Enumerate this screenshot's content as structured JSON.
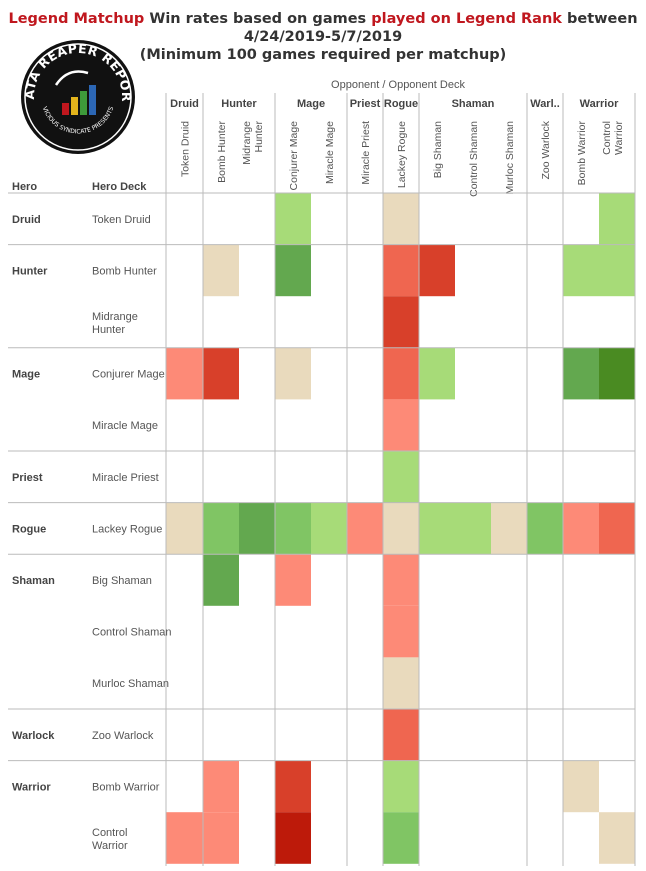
{
  "title": {
    "part1": "Legend Matchup",
    "part2": " Win rates based on games ",
    "part3": "played on Legend Rank",
    "part4": "  between",
    "line2": "4/24/2019-5/7/2019",
    "line3": "(Minimum 100 games required per matchup)"
  },
  "logo": {
    "text": "DATA REAPER REPORT",
    "subtext": "VICIOUS SYNDICATE PRESENTS"
  },
  "colors": {
    "dark_red": "#bd1a0a",
    "red": "#d8402a",
    "light_red": "#ef6650",
    "salmon": "#fd8a77",
    "neutral": "#e9dabd",
    "light_green": "#a7db78",
    "green": "#80c564",
    "mid_green": "#63a84f",
    "dark_green": "#4a8b22"
  },
  "chart_data": {
    "type": "heatmap",
    "opponent_axis_label": "Opponent  /  Opponent Deck",
    "row_header_hero": "Hero",
    "row_header_deck": "Hero Deck",
    "column_groups": [
      {
        "hero": "Druid",
        "decks": [
          "Token Druid"
        ]
      },
      {
        "hero": "Hunter",
        "decks": [
          "Bomb Hunter",
          "Midrange Hunter"
        ]
      },
      {
        "hero": "Mage",
        "decks": [
          "Conjurer Mage",
          "Miracle Mage"
        ]
      },
      {
        "hero": "Priest",
        "decks": [
          "Miracle Priest"
        ]
      },
      {
        "hero": "Rogue",
        "decks": [
          "Lackey Rogue"
        ]
      },
      {
        "hero": "Shaman",
        "decks": [
          "Big Shaman",
          "Control Shaman",
          "Murloc Shaman"
        ]
      },
      {
        "hero": "Warl..",
        "decks": [
          "Zoo Warlock"
        ]
      },
      {
        "hero": "Warrior",
        "decks": [
          "Bomb Warrior",
          "Control Warrior"
        ]
      }
    ],
    "row_groups": [
      {
        "hero": "Druid",
        "decks": [
          {
            "name": "Token Druid",
            "cells": [
              null,
              null,
              null,
              "light_green",
              null,
              null,
              "neutral",
              null,
              null,
              null,
              null,
              null,
              "light_green"
            ]
          }
        ]
      },
      {
        "hero": "Hunter",
        "decks": [
          {
            "name": "Bomb Hunter",
            "cells": [
              null,
              "neutral",
              null,
              "mid_green",
              null,
              null,
              "light_red",
              "red",
              null,
              null,
              null,
              "light_green",
              "light_green"
            ]
          },
          {
            "name": "Midrange Hunter",
            "cells": [
              null,
              null,
              null,
              null,
              null,
              null,
              "red",
              null,
              null,
              null,
              null,
              null,
              null
            ]
          }
        ]
      },
      {
        "hero": "Mage",
        "decks": [
          {
            "name": "Conjurer Mage",
            "cells": [
              "salmon",
              "red",
              null,
              "neutral",
              null,
              null,
              "light_red",
              "light_green",
              null,
              null,
              null,
              "mid_green",
              "dark_green"
            ]
          },
          {
            "name": "Miracle Mage",
            "cells": [
              null,
              null,
              null,
              null,
              null,
              null,
              "salmon",
              null,
              null,
              null,
              null,
              null,
              null
            ]
          }
        ]
      },
      {
        "hero": "Priest",
        "decks": [
          {
            "name": "Miracle Priest",
            "cells": [
              null,
              null,
              null,
              null,
              null,
              null,
              "light_green",
              null,
              null,
              null,
              null,
              null,
              null
            ]
          }
        ]
      },
      {
        "hero": "Rogue",
        "decks": [
          {
            "name": "Lackey Rogue",
            "cells": [
              "neutral",
              "green",
              "mid_green",
              "green",
              "light_green",
              "salmon",
              "neutral",
              "light_green",
              "light_green",
              "neutral",
              "green",
              "salmon",
              "light_red"
            ]
          }
        ]
      },
      {
        "hero": "Shaman",
        "decks": [
          {
            "name": "Big Shaman",
            "cells": [
              null,
              "mid_green",
              null,
              "salmon",
              null,
              null,
              "salmon",
              null,
              null,
              null,
              null,
              null,
              null
            ]
          },
          {
            "name": "Control Shaman",
            "cells": [
              null,
              null,
              null,
              null,
              null,
              null,
              "salmon",
              null,
              null,
              null,
              null,
              null,
              null
            ]
          },
          {
            "name": "Murloc Shaman",
            "cells": [
              null,
              null,
              null,
              null,
              null,
              null,
              "neutral",
              null,
              null,
              null,
              null,
              null,
              null
            ]
          }
        ]
      },
      {
        "hero": "Warlock",
        "decks": [
          {
            "name": "Zoo Warlock",
            "cells": [
              null,
              null,
              null,
              null,
              null,
              null,
              "light_red",
              null,
              null,
              null,
              null,
              null,
              null
            ]
          }
        ]
      },
      {
        "hero": "Warrior",
        "decks": [
          {
            "name": "Bomb Warrior",
            "cells": [
              null,
              "salmon",
              null,
              "red",
              null,
              null,
              "light_green",
              null,
              null,
              null,
              null,
              "neutral",
              null
            ]
          },
          {
            "name": "Control Warrior",
            "cells": [
              "salmon",
              "salmon",
              null,
              "dark_red",
              null,
              null,
              "green",
              null,
              null,
              null,
              null,
              null,
              "neutral"
            ]
          }
        ]
      }
    ]
  }
}
